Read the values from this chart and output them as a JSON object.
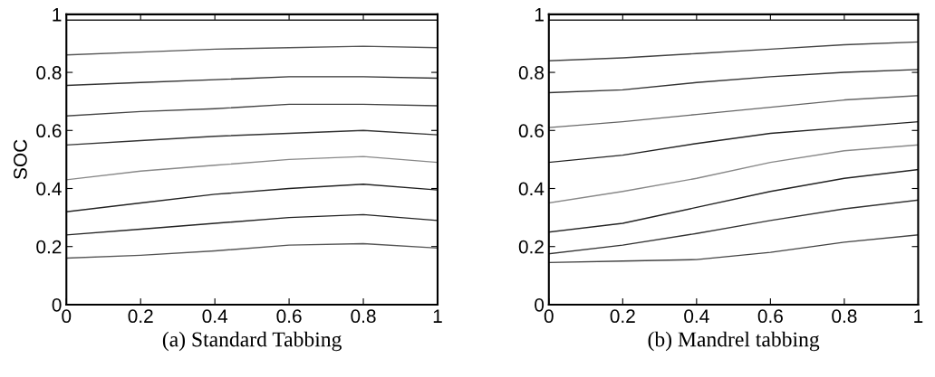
{
  "chart_data": [
    {
      "type": "line",
      "xlabel": "(a) Standard Tabbing",
      "ylabel": "SOC",
      "x": [
        0,
        0.2,
        0.4,
        0.6,
        0.8,
        1
      ],
      "xlim": [
        0,
        1
      ],
      "ylim": [
        0,
        1
      ],
      "xticks": [
        0,
        0.2,
        0.4,
        0.6,
        0.8,
        1
      ],
      "yticks": [
        0,
        0.2,
        0.4,
        0.6,
        0.8,
        1
      ],
      "grid": false,
      "series": [
        {
          "color": "#222222",
          "values": [
            0.98,
            0.98,
            0.98,
            0.98,
            0.98,
            0.98
          ]
        },
        {
          "color": "#555555",
          "values": [
            0.86,
            0.87,
            0.88,
            0.885,
            0.89,
            0.885
          ]
        },
        {
          "color": "#333333",
          "values": [
            0.755,
            0.765,
            0.775,
            0.785,
            0.785,
            0.78
          ]
        },
        {
          "color": "#444444",
          "values": [
            0.65,
            0.665,
            0.675,
            0.69,
            0.69,
            0.685
          ]
        },
        {
          "color": "#333333",
          "values": [
            0.55,
            0.565,
            0.58,
            0.59,
            0.6,
            0.585
          ]
        },
        {
          "color": "#888888",
          "values": [
            0.43,
            0.46,
            0.48,
            0.5,
            0.51,
            0.49
          ]
        },
        {
          "color": "#222222",
          "values": [
            0.32,
            0.35,
            0.38,
            0.4,
            0.415,
            0.395
          ]
        },
        {
          "color": "#222222",
          "values": [
            0.24,
            0.26,
            0.28,
            0.3,
            0.31,
            0.29
          ]
        },
        {
          "color": "#555555",
          "values": [
            0.16,
            0.17,
            0.185,
            0.205,
            0.21,
            0.195
          ]
        }
      ]
    },
    {
      "type": "line",
      "xlabel": "(b) Mandrel tabbing",
      "x": [
        0,
        0.2,
        0.4,
        0.6,
        0.8,
        1
      ],
      "xlim": [
        0,
        1
      ],
      "ylim": [
        0,
        1
      ],
      "xticks": [
        0,
        0.2,
        0.4,
        0.6,
        0.8,
        1
      ],
      "yticks": [
        0,
        0.2,
        0.4,
        0.6,
        0.8,
        1
      ],
      "grid": false,
      "series": [
        {
          "color": "#222222",
          "values": [
            0.98,
            0.98,
            0.98,
            0.98,
            0.98,
            0.98
          ]
        },
        {
          "color": "#444444",
          "values": [
            0.84,
            0.85,
            0.865,
            0.88,
            0.895,
            0.905
          ]
        },
        {
          "color": "#333333",
          "values": [
            0.73,
            0.74,
            0.765,
            0.785,
            0.8,
            0.81
          ]
        },
        {
          "color": "#666666",
          "values": [
            0.61,
            0.63,
            0.655,
            0.68,
            0.705,
            0.72
          ]
        },
        {
          "color": "#222222",
          "values": [
            0.49,
            0.515,
            0.555,
            0.59,
            0.61,
            0.63
          ]
        },
        {
          "color": "#888888",
          "values": [
            0.35,
            0.39,
            0.435,
            0.49,
            0.53,
            0.55
          ]
        },
        {
          "color": "#222222",
          "values": [
            0.25,
            0.28,
            0.335,
            0.39,
            0.435,
            0.465
          ]
        },
        {
          "color": "#333333",
          "values": [
            0.175,
            0.205,
            0.245,
            0.29,
            0.33,
            0.36
          ]
        },
        {
          "color": "#444444",
          "values": [
            0.145,
            0.15,
            0.155,
            0.18,
            0.215,
            0.24
          ]
        }
      ]
    }
  ]
}
